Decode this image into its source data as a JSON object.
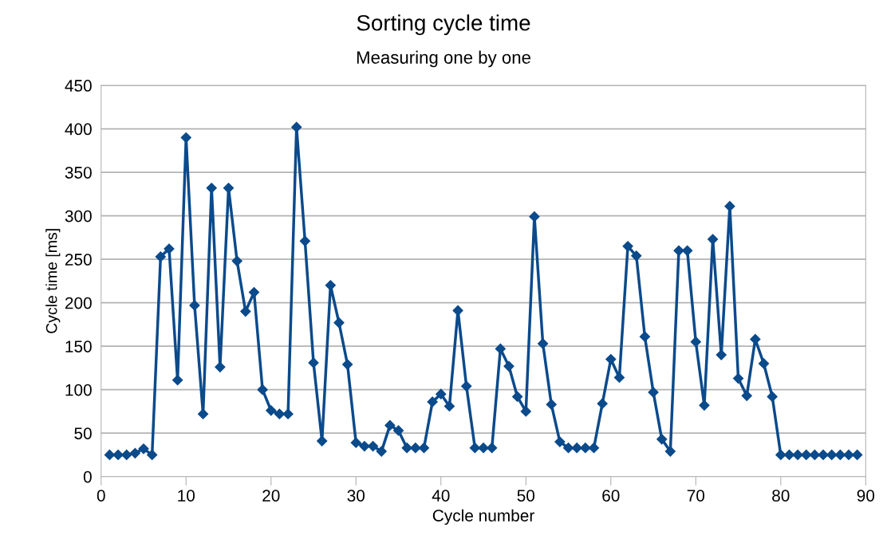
{
  "chart_data": {
    "type": "line",
    "title": "Sorting cycle time",
    "subtitle": "Measuring one by one",
    "xlabel": "Cycle number",
    "ylabel": "Cycle time [ms]",
    "x": [
      1,
      2,
      3,
      4,
      5,
      6,
      7,
      8,
      9,
      10,
      11,
      12,
      13,
      14,
      15,
      16,
      17,
      18,
      19,
      20,
      21,
      22,
      23,
      24,
      25,
      26,
      27,
      28,
      29,
      30,
      31,
      32,
      33,
      34,
      35,
      36,
      37,
      38,
      39,
      40,
      41,
      42,
      43,
      44,
      45,
      46,
      47,
      48,
      49,
      50,
      51,
      52,
      53,
      54,
      55,
      56,
      57,
      58,
      59,
      60,
      61,
      62,
      63,
      64,
      65,
      66,
      67,
      68,
      69,
      70,
      71,
      72,
      73,
      74,
      75,
      76,
      77,
      78,
      79,
      80,
      81,
      82,
      83,
      84,
      85,
      86,
      87,
      88,
      89
    ],
    "series": [
      {
        "color": "#0b4a8b",
        "values": [
          25,
          25,
          25,
          27,
          32,
          25,
          253,
          262,
          111,
          390,
          197,
          72,
          332,
          126,
          332,
          248,
          190,
          212,
          100,
          76,
          72,
          72,
          402,
          271,
          131,
          41,
          220,
          177,
          129,
          39,
          35,
          35,
          29,
          59,
          53,
          33,
          33,
          33,
          86,
          95,
          81,
          191,
          104,
          33,
          33,
          33,
          147,
          127,
          92,
          75,
          299,
          153,
          83,
          40,
          33,
          33,
          33,
          33,
          84,
          135,
          114,
          265,
          254,
          161,
          97,
          43,
          29,
          260,
          260,
          155,
          82,
          273,
          140,
          311,
          113,
          93,
          158,
          130,
          92,
          25,
          25,
          25,
          25,
          25,
          25,
          25,
          25,
          25,
          25
        ]
      }
    ],
    "xlim": [
      0,
      90
    ],
    "xticks": [
      0,
      10,
      20,
      30,
      40,
      50,
      60,
      70,
      80,
      90
    ],
    "ylim": [
      0,
      450
    ],
    "yticks": [
      0,
      50,
      100,
      150,
      200,
      250,
      300,
      350,
      400,
      450
    ],
    "grid": "y",
    "marker": "diamond",
    "line_style": "solid",
    "legend": false
  }
}
